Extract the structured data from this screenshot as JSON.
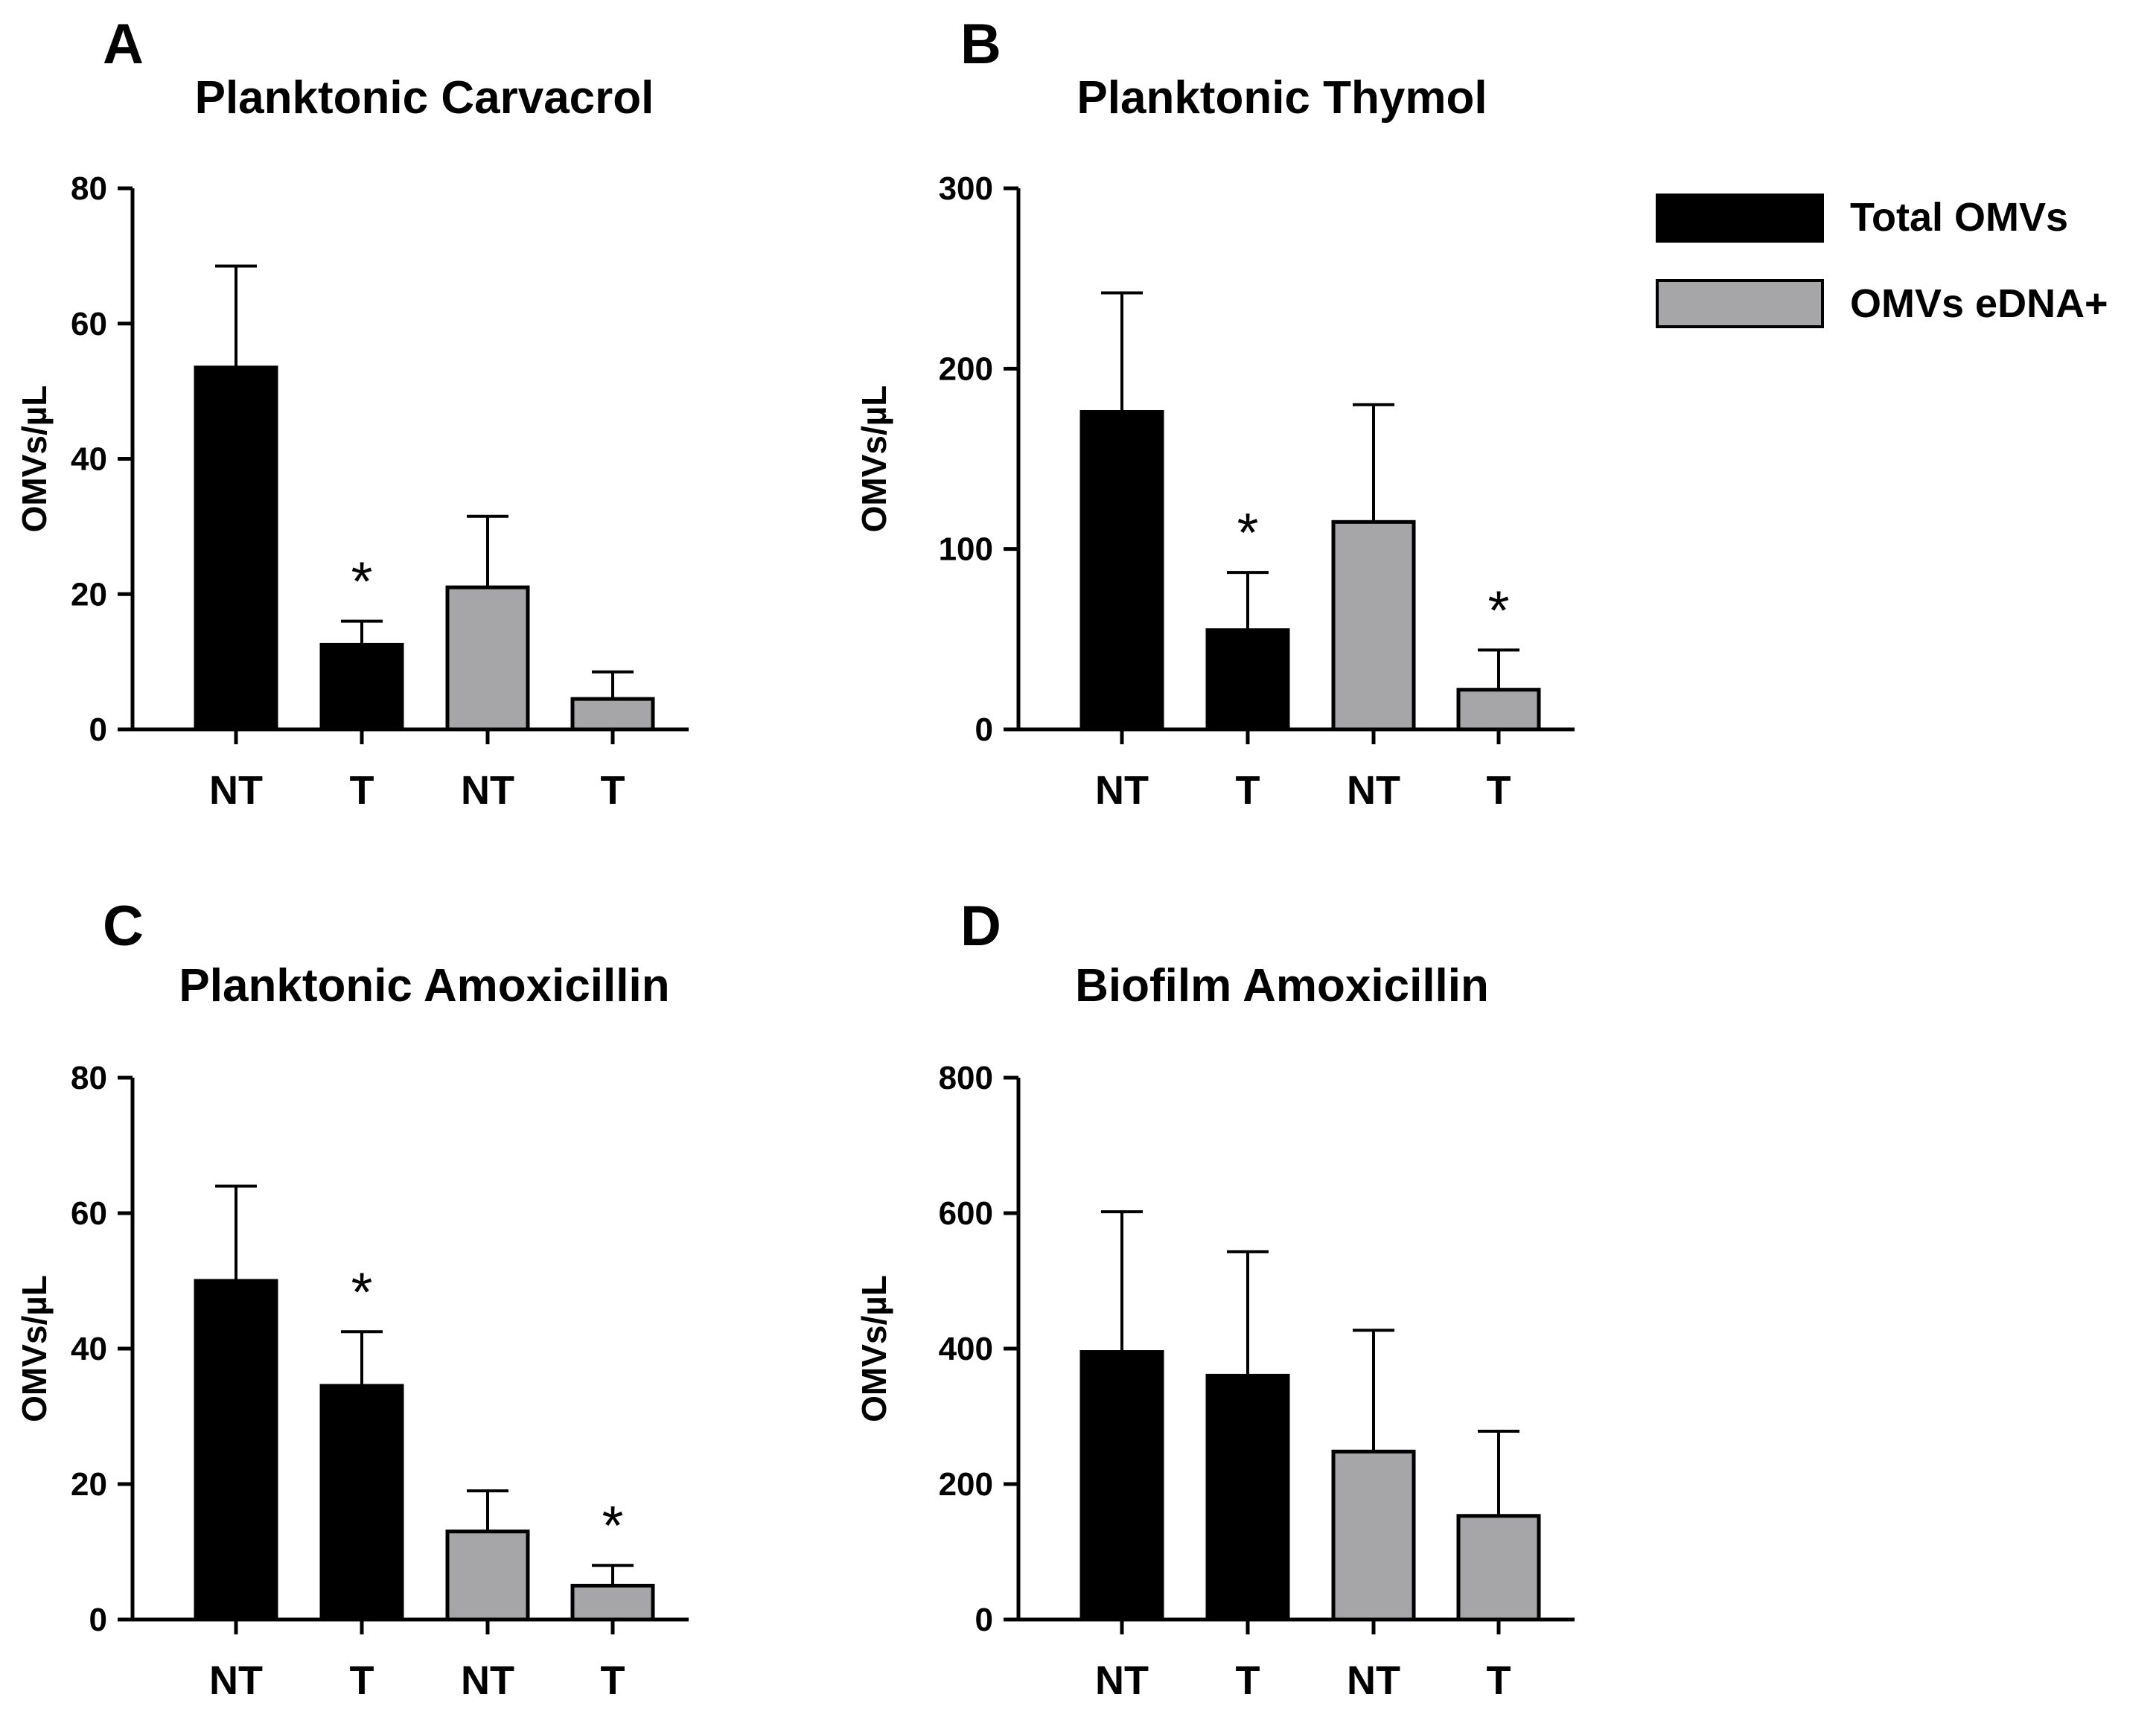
{
  "legend": [
    {
      "label": "Total OMVs",
      "color": "#000000"
    },
    {
      "label": "OMVs eDNA+",
      "color": "#a6a6a8"
    }
  ],
  "chart_data": [
    {
      "type": "bar",
      "panel": "A",
      "title": "Planktonic Carvacrol",
      "ylabel": "OMVs/µL",
      "ylim": [
        0,
        80
      ],
      "yticks": [
        0,
        20,
        40,
        60,
        80
      ],
      "categories": [
        "NT",
        "T",
        "NT",
        "T"
      ],
      "series": [
        "Total OMVs",
        "Total OMVs",
        "OMVs eDNA+",
        "OMVs eDNA+"
      ],
      "values": [
        53.5,
        12.5,
        21,
        4.5
      ],
      "errors": [
        15,
        3.5,
        10.5,
        4
      ],
      "significant": [
        false,
        true,
        false,
        false
      ]
    },
    {
      "type": "bar",
      "panel": "B",
      "title": "Planktonic Thymol",
      "ylabel": "OMVs/µL",
      "ylim": [
        0,
        300
      ],
      "yticks": [
        0,
        100,
        200,
        300
      ],
      "categories": [
        "NT",
        "T",
        "NT",
        "T"
      ],
      "series": [
        "Total OMVs",
        "Total OMVs",
        "OMVs eDNA+",
        "OMVs eDNA+"
      ],
      "values": [
        176,
        55,
        115,
        22
      ],
      "errors": [
        66,
        32,
        65,
        22
      ],
      "significant": [
        false,
        true,
        false,
        true
      ]
    },
    {
      "type": "bar",
      "panel": "C",
      "title": "Planktonic Amoxicillin",
      "ylabel": "OMVs/µL",
      "ylim": [
        0,
        80
      ],
      "yticks": [
        0,
        20,
        40,
        60,
        80
      ],
      "categories": [
        "NT",
        "T",
        "NT",
        "T"
      ],
      "series": [
        "Total OMVs",
        "Total OMVs",
        "OMVs eDNA+",
        "OMVs eDNA+"
      ],
      "values": [
        50,
        34.5,
        13,
        5
      ],
      "errors": [
        14,
        8,
        6,
        3
      ],
      "significant": [
        false,
        true,
        false,
        true
      ]
    },
    {
      "type": "bar",
      "panel": "D",
      "title": "Biofilm Amoxicillin",
      "ylabel": "OMVs/µL",
      "ylim": [
        0,
        800
      ],
      "yticks": [
        0,
        200,
        400,
        600,
        800
      ],
      "categories": [
        "NT",
        "T",
        "NT",
        "T"
      ],
      "series": [
        "Total OMVs",
        "Total OMVs",
        "OMVs eDNA+",
        "OMVs eDNA+"
      ],
      "values": [
        395,
        360,
        248,
        153
      ],
      "errors": [
        207,
        183,
        179,
        125
      ],
      "significant": [
        false,
        false,
        false,
        false
      ]
    }
  ],
  "significance_marker": "*"
}
